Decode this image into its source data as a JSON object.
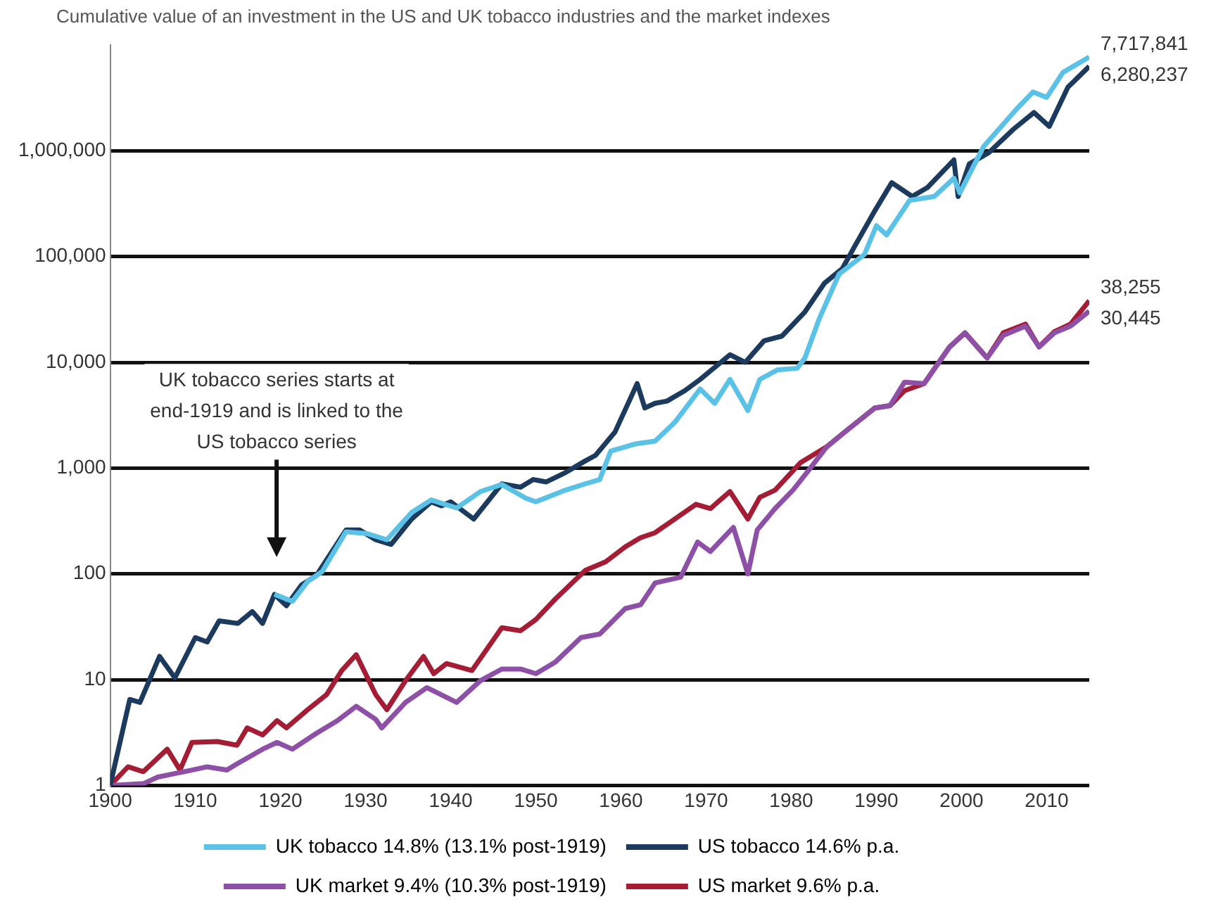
{
  "chart_data": {
    "type": "line",
    "title": "Cumulative value of an investment in the US and UK tobacco industries and the market indexes",
    "xlim": [
      1900,
      2015
    ],
    "xticks": [
      1900,
      1910,
      1920,
      1930,
      1940,
      1950,
      1960,
      1970,
      1980,
      1990,
      2000,
      2010
    ],
    "ylim": [
      1,
      10000000
    ],
    "yticks": [
      1,
      10,
      100,
      {
        "value": 1000,
        "label": "1,000"
      },
      {
        "value": 10000,
        "label": "10,000"
      },
      {
        "value": 100000,
        "label": "100,000"
      },
      {
        "value": 1000000,
        "label": "1,000,000"
      }
    ],
    "log": "y",
    "grid": "y",
    "legend": "bottom",
    "marker": "none",
    "line_style": "solid",
    "series": [
      {
        "name": "UK tobacco 14.8% (13.1% post-1919)",
        "color": "#5bc2e7",
        "x": [
          1919.3,
          1921.4,
          1923.2,
          1924.9,
          1927.7,
          1930.2,
          1932.5,
          1935.4,
          1937.7,
          1940.7,
          1943.5,
          1946,
          1948.8,
          1950,
          1953.5,
          1955.8,
          1957.5,
          1958.8,
          1961.8,
          1964,
          1966.3,
          1969.3,
          1971,
          1972.8,
          1974.9,
          1976.3,
          1978.4,
          1980.7,
          1981.6,
          1983.3,
          1985.6,
          1988.6,
          1990,
          1991.2,
          1993.9,
          1996.8,
          1999.1,
          1999.8,
          2002.6,
          2006.5,
          2008.4,
          2010,
          2011.9,
          2015
        ],
        "values": [
          64,
          55,
          85,
          105,
          250,
          240,
          210,
          380,
          500,
          420,
          600,
          700,
          520,
          480,
          620,
          710,
          780,
          1450,
          1700,
          1800,
          2700,
          5600,
          4100,
          6900,
          3500,
          6900,
          8500,
          8800,
          11000,
          26000,
          68000,
          105000,
          196000,
          160000,
          340000,
          370000,
          550000,
          400000,
          1100000,
          2500000,
          3600000,
          3200000,
          5500000,
          7717841
        ],
        "value_labels": [
          null,
          null,
          null,
          null,
          null,
          null,
          null,
          null,
          null,
          null,
          null,
          null,
          null,
          null,
          null,
          null,
          null,
          null,
          null,
          null,
          null,
          null,
          null,
          null,
          null,
          null,
          null,
          null,
          null,
          null,
          null,
          null,
          null,
          null,
          null,
          null,
          null,
          null,
          null,
          null,
          null,
          null,
          null,
          "7,717,841"
        ]
      },
      {
        "name": "US tobacco 14.6% p.a.",
        "color": "#1b3a5e",
        "x": [
          1900,
          1902.3,
          1903.5,
          1905.8,
          1907.6,
          1910,
          1911.4,
          1912.8,
          1915,
          1916.7,
          1917.9,
          1919.3,
          1920.7,
          1922.5,
          1924.2,
          1927.7,
          1929.3,
          1931.2,
          1933,
          1935.4,
          1937.7,
          1938.9,
          1940,
          1942.7,
          1946,
          1948.2,
          1949.7,
          1951.2,
          1953.5,
          1955.8,
          1957,
          1959.3,
          1961.9,
          1962.8,
          1964,
          1965.4,
          1967.5,
          1969.3,
          1972.8,
          1974.6,
          1976.8,
          1978.9,
          1981.6,
          1983.9,
          1986,
          1987.4,
          1989.8,
          1991.8,
          1994.2,
          1996,
          1999.1,
          1999.6,
          2000.9,
          2003.2,
          2006.1,
          2008.5,
          2010.3,
          2012.5,
          2015
        ],
        "values": [
          1,
          6.5,
          6.1,
          16.6,
          10.4,
          25,
          22.7,
          36,
          34,
          44,
          34,
          64,
          50,
          79,
          96,
          260,
          260,
          210,
          190,
          330,
          480,
          440,
          480,
          330,
          710,
          660,
          780,
          740,
          910,
          1170,
          1320,
          2200,
          6300,
          3700,
          4100,
          4300,
          5400,
          6900,
          11800,
          10000,
          16000,
          17700,
          30000,
          56000,
          77000,
          123000,
          270000,
          500000,
          370000,
          450000,
          820000,
          370000,
          750000,
          960000,
          1600000,
          2300000,
          1700000,
          4000000,
          6280237
        ],
        "value_labels": [
          null,
          null,
          null,
          null,
          null,
          null,
          null,
          null,
          null,
          null,
          null,
          null,
          null,
          null,
          null,
          null,
          null,
          null,
          null,
          null,
          null,
          null,
          null,
          null,
          null,
          null,
          null,
          null,
          null,
          null,
          null,
          null,
          null,
          null,
          null,
          null,
          null,
          null,
          null,
          null,
          null,
          null,
          null,
          null,
          null,
          null,
          null,
          null,
          null,
          null,
          null,
          null,
          null,
          null,
          null,
          null,
          null,
          null,
          "6,280,237"
        ]
      },
      {
        "name": "UK market 9.4% (10.3% post-1919)",
        "color": "#8e4fa6",
        "x": [
          1900,
          1903.9,
          1905.6,
          1909.1,
          1911.4,
          1913.7,
          1914.9,
          1917.9,
          1919.6,
          1921.4,
          1924.2,
          1926.7,
          1928.9,
          1931.2,
          1931.9,
          1934.7,
          1937.2,
          1940.7,
          1943.5,
          1946,
          1948.2,
          1950,
          1952.3,
          1955.3,
          1957.5,
          1960.5,
          1962.3,
          1964,
          1967,
          1969,
          1970.5,
          1973.2,
          1974.9,
          1976,
          1978.1,
          1980.2,
          1981.6,
          1984.2,
          1986.3,
          1989.8,
          1991.6,
          1993.3,
          1995.6,
          1998.6,
          2000.4,
          2003,
          2004.9,
          2007.5,
          2009.1,
          2010.9,
          2012.8,
          2015
        ],
        "values": [
          1,
          1.04,
          1.2,
          1.37,
          1.5,
          1.4,
          1.6,
          2.2,
          2.55,
          2.2,
          3.1,
          4.1,
          5.6,
          4.2,
          3.5,
          6.1,
          8.4,
          6.1,
          9.8,
          12.6,
          12.6,
          11.4,
          14.7,
          25,
          27,
          47,
          51,
          82,
          93,
          200,
          163,
          275,
          100,
          260,
          415,
          620,
          860,
          1600,
          2200,
          3700,
          3900,
          6500,
          6300,
          14000,
          19000,
          11000,
          18000,
          22000,
          14000,
          19000,
          22000,
          30445
        ],
        "value_labels": [
          null,
          null,
          null,
          null,
          null,
          null,
          null,
          null,
          null,
          null,
          null,
          null,
          null,
          null,
          null,
          null,
          null,
          null,
          null,
          null,
          null,
          null,
          null,
          null,
          null,
          null,
          null,
          null,
          null,
          null,
          null,
          null,
          null,
          null,
          null,
          null,
          null,
          null,
          null,
          null,
          null,
          null,
          null,
          null,
          null,
          null,
          null,
          null,
          null,
          null,
          null,
          "30,445"
        ]
      },
      {
        "name": "US market 9.6% p.a.",
        "color": "#a51d34",
        "x": [
          1900,
          1902.1,
          1903.9,
          1906.7,
          1908.2,
          1909.6,
          1912.6,
          1914.9,
          1916.1,
          1917.9,
          1919.6,
          1920.7,
          1923.2,
          1925.4,
          1927.2,
          1928.9,
          1931.2,
          1932.5,
          1934.7,
          1936.8,
          1938,
          1939.5,
          1942.5,
          1946,
          1948.2,
          1950,
          1952.3,
          1955.8,
          1958.2,
          1960.5,
          1962.3,
          1964,
          1966.3,
          1968.8,
          1970.5,
          1972.8,
          1974.9,
          1976.3,
          1978.1,
          1981.1,
          1984.2,
          1986.3,
          1989.8,
          1991.6,
          1993.3,
          1995.6,
          1998.6,
          2000.4,
          2003,
          2004.9,
          2007.5,
          2009.1,
          2010.9,
          2012.8,
          2015
        ],
        "values": [
          1,
          1.5,
          1.35,
          2.2,
          1.4,
          2.55,
          2.6,
          2.4,
          3.5,
          3,
          4.1,
          3.5,
          5.2,
          7.2,
          12.2,
          17.2,
          7.2,
          5.2,
          9.8,
          16.6,
          11.4,
          14.2,
          12.2,
          31,
          29,
          37,
          58,
          108,
          130,
          180,
          220,
          245,
          330,
          455,
          415,
          600,
          330,
          530,
          620,
          1130,
          1600,
          2200,
          3700,
          3900,
          5400,
          6300,
          14000,
          19000,
          11000,
          19000,
          23000,
          14000,
          19500,
          23000,
          38255
        ],
        "value_labels": [
          null,
          null,
          null,
          null,
          null,
          null,
          null,
          null,
          null,
          null,
          null,
          null,
          null,
          null,
          null,
          null,
          null,
          null,
          null,
          null,
          null,
          null,
          null,
          null,
          null,
          null,
          null,
          null,
          null,
          null,
          null,
          null,
          null,
          null,
          null,
          null,
          null,
          null,
          null,
          null,
          null,
          null,
          null,
          null,
          null,
          null,
          null,
          null,
          null,
          null,
          null,
          null,
          null,
          null,
          "38,255"
        ]
      }
    ],
    "annotations": [
      "UK tobacco series starts at end-1919 and is linked to the US tobacco series"
    ]
  }
}
